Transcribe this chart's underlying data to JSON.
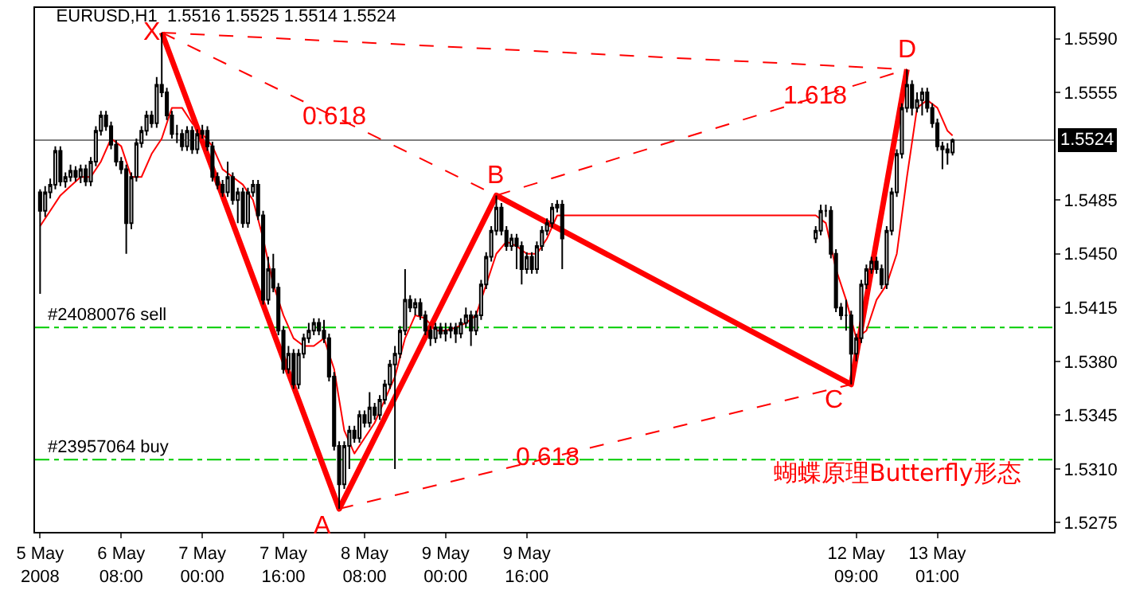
{
  "chart_data": {
    "type": "candlestick",
    "title": "EURUSD,H1  1.5516 1.5525 1.5514 1.5524",
    "color": "#000000",
    "xlim": [
      "2008-05-05T15:00",
      "2008-05-14T00:00"
    ],
    "ylim": [
      1.5269,
      1.561
    ],
    "xticks": [
      {
        "value": "2008-05-05T16:00",
        "label": "5 May 2008"
      },
      {
        "value": "2008-05-06T08:00",
        "label": "6 May 08:00"
      },
      {
        "value": "2008-05-07T00:00",
        "label": "7 May 00:00"
      },
      {
        "value": "2008-05-07T16:00",
        "label": "7 May 16:00"
      },
      {
        "value": "2008-05-08T08:00",
        "label": "8 May 08:00"
      },
      {
        "value": "2008-05-09T00:00",
        "label": "9 May 00:00"
      },
      {
        "value": "2008-05-09T16:00",
        "label": "9 May 16:00"
      },
      {
        "value": "2008-05-12T09:00",
        "label": "12 May 09:00"
      },
      {
        "value": "2008-05-13T01:00",
        "label": "13 May 01:00"
      }
    ],
    "yticks": [
      {
        "value": 1.559,
        "label": "1.5590"
      },
      1.5555,
      1.5485,
      {
        "value": 1.545,
        "label": "1.5450"
      },
      1.5415,
      {
        "value": 1.538,
        "label": "1.5380"
      },
      1.5345,
      {
        "value": 1.531,
        "label": "1.5310"
      },
      1.5275
    ],
    "x": [
      "2008-05-05T16:00",
      "2008-05-05T17:00",
      "2008-05-05T18:00",
      "2008-05-05T19:00",
      "2008-05-05T20:00",
      "2008-05-05T21:00",
      "2008-05-05T22:00",
      "2008-05-05T23:00",
      "2008-05-06T00:00",
      "2008-05-06T01:00",
      "2008-05-06T02:00",
      "2008-05-06T03:00",
      "2008-05-06T04:00",
      "2008-05-06T05:00",
      "2008-05-06T06:00",
      "2008-05-06T07:00",
      "2008-05-06T08:00",
      "2008-05-06T09:00",
      "2008-05-06T10:00",
      "2008-05-06T11:00",
      "2008-05-06T12:00",
      "2008-05-06T13:00",
      "2008-05-06T14:00",
      "2008-05-06T15:00",
      "2008-05-06T16:00",
      "2008-05-06T17:00",
      "2008-05-06T18:00",
      "2008-05-06T19:00",
      "2008-05-06T20:00",
      "2008-05-06T21:00",
      "2008-05-06T22:00",
      "2008-05-06T23:00",
      "2008-05-07T00:00",
      "2008-05-07T01:00",
      "2008-05-07T02:00",
      "2008-05-07T03:00",
      "2008-05-07T04:00",
      "2008-05-07T05:00",
      "2008-05-07T06:00",
      "2008-05-07T07:00",
      "2008-05-07T08:00",
      "2008-05-07T09:00",
      "2008-05-07T10:00",
      "2008-05-07T11:00",
      "2008-05-07T12:00",
      "2008-05-07T13:00",
      "2008-05-07T14:00",
      "2008-05-07T15:00",
      "2008-05-07T16:00",
      "2008-05-07T17:00",
      "2008-05-07T18:00",
      "2008-05-07T19:00",
      "2008-05-07T20:00",
      "2008-05-07T21:00",
      "2008-05-07T22:00",
      "2008-05-07T23:00",
      "2008-05-08T00:00",
      "2008-05-08T01:00",
      "2008-05-08T02:00",
      "2008-05-08T03:00",
      "2008-05-08T04:00",
      "2008-05-08T05:00",
      "2008-05-08T06:00",
      "2008-05-08T07:00",
      "2008-05-08T08:00",
      "2008-05-08T09:00",
      "2008-05-08T10:00",
      "2008-05-08T11:00",
      "2008-05-08T12:00",
      "2008-05-08T13:00",
      "2008-05-08T14:00",
      "2008-05-08T15:00",
      "2008-05-08T16:00",
      "2008-05-08T17:00",
      "2008-05-08T18:00",
      "2008-05-08T19:00",
      "2008-05-08T20:00",
      "2008-05-08T21:00",
      "2008-05-08T22:00",
      "2008-05-08T23:00",
      "2008-05-09T00:00",
      "2008-05-09T01:00",
      "2008-05-09T02:00",
      "2008-05-09T03:00",
      "2008-05-09T04:00",
      "2008-05-09T05:00",
      "2008-05-09T06:00",
      "2008-05-09T07:00",
      "2008-05-09T08:00",
      "2008-05-09T09:00",
      "2008-05-09T10:00",
      "2008-05-09T11:00",
      "2008-05-09T12:00",
      "2008-05-09T13:00",
      "2008-05-09T14:00",
      "2008-05-09T15:00",
      "2008-05-09T16:00",
      "2008-05-09T17:00",
      "2008-05-09T18:00",
      "2008-05-09T19:00",
      "2008-05-09T20:00",
      "2008-05-09T21:00",
      "2008-05-09T22:00",
      "2008-05-09T23:00",
      "2008-05-12T01:00",
      "2008-05-12T02:00",
      "2008-05-12T03:00",
      "2008-05-12T04:00",
      "2008-05-12T05:00",
      "2008-05-12T06:00",
      "2008-05-12T07:00",
      "2008-05-12T08:00",
      "2008-05-12T09:00",
      "2008-05-12T10:00",
      "2008-05-12T11:00",
      "2008-05-12T12:00",
      "2008-05-12T13:00",
      "2008-05-12T14:00",
      "2008-05-12T15:00",
      "2008-05-12T16:00",
      "2008-05-12T17:00",
      "2008-05-12T18:00",
      "2008-05-12T19:00",
      "2008-05-12T20:00",
      "2008-05-12T21:00",
      "2008-05-12T22:00",
      "2008-05-12T23:00",
      "2008-05-13T00:00",
      "2008-05-13T01:00",
      "2008-05-13T02:00",
      "2008-05-13T03:00",
      "2008-05-13T04:00"
    ],
    "ohlc": [
      [
        1.549,
        1.5492,
        1.5424,
        1.5478
      ],
      [
        1.5478,
        1.5494,
        1.5474,
        1.549
      ],
      [
        1.549,
        1.5499,
        1.5486,
        1.5495
      ],
      [
        1.5495,
        1.552,
        1.5492,
        1.5517
      ],
      [
        1.5517,
        1.552,
        1.5494,
        1.5497
      ],
      [
        1.5497,
        1.5503,
        1.5493,
        1.55
      ],
      [
        1.55,
        1.5508,
        1.5497,
        1.5504
      ],
      [
        1.5504,
        1.5507,
        1.5497,
        1.55
      ],
      [
        1.55,
        1.5508,
        1.5496,
        1.5505
      ],
      [
        1.5505,
        1.5508,
        1.5494,
        1.5497
      ],
      [
        1.5497,
        1.5513,
        1.5494,
        1.551
      ],
      [
        1.551,
        1.5533,
        1.5507,
        1.553
      ],
      [
        1.553,
        1.5543,
        1.5527,
        1.554
      ],
      [
        1.554,
        1.5543,
        1.553,
        1.5533
      ],
      [
        1.5533,
        1.5536,
        1.5518,
        1.5521
      ],
      [
        1.5521,
        1.5524,
        1.5507,
        1.551
      ],
      [
        1.551,
        1.5513,
        1.5502,
        1.5505
      ],
      [
        1.5505,
        1.5508,
        1.545,
        1.547
      ],
      [
        1.547,
        1.5503,
        1.5466,
        1.55
      ],
      [
        1.55,
        1.5525,
        1.5497,
        1.5522
      ],
      [
        1.5522,
        1.5533,
        1.5519,
        1.553
      ],
      [
        1.553,
        1.5543,
        1.5527,
        1.554
      ],
      [
        1.554,
        1.5543,
        1.5532,
        1.5535
      ],
      [
        1.5535,
        1.5565,
        1.5532,
        1.556
      ],
      [
        1.556,
        1.5594,
        1.5552,
        1.5555
      ],
      [
        1.5555,
        1.5558,
        1.5537,
        1.554
      ],
      [
        1.554,
        1.5543,
        1.5525,
        1.5528
      ],
      [
        1.5528,
        1.5534,
        1.5522,
        1.5528
      ],
      [
        1.5528,
        1.5531,
        1.5517,
        1.552
      ],
      [
        1.552,
        1.5533,
        1.5517,
        1.553
      ],
      [
        1.553,
        1.5533,
        1.5515,
        1.5518
      ],
      [
        1.5518,
        1.5531,
        1.5515,
        1.5528
      ],
      [
        1.5528,
        1.5534,
        1.5525,
        1.553
      ],
      [
        1.553,
        1.5533,
        1.5517,
        1.552
      ],
      [
        1.552,
        1.5523,
        1.5497,
        1.55
      ],
      [
        1.55,
        1.5503,
        1.5492,
        1.5495
      ],
      [
        1.5495,
        1.5498,
        1.5487,
        1.549
      ],
      [
        1.549,
        1.551,
        1.5487,
        1.55
      ],
      [
        1.55,
        1.5503,
        1.5482,
        1.5485
      ],
      [
        1.5485,
        1.5493,
        1.547,
        1.549
      ],
      [
        1.549,
        1.5493,
        1.5467,
        1.547
      ],
      [
        1.547,
        1.5493,
        1.5467,
        1.549
      ],
      [
        1.549,
        1.5498,
        1.5487,
        1.5495
      ],
      [
        1.5495,
        1.5498,
        1.5472,
        1.5475
      ],
      [
        1.5475,
        1.5478,
        1.5417,
        1.542
      ],
      [
        1.542,
        1.5448,
        1.5417,
        1.544
      ],
      [
        1.544,
        1.545,
        1.5425,
        1.5428
      ],
      [
        1.5428,
        1.5431,
        1.5397,
        1.54
      ],
      [
        1.54,
        1.5403,
        1.5372,
        1.5375
      ],
      [
        1.5375,
        1.539,
        1.5372,
        1.5385
      ],
      [
        1.5385,
        1.5388,
        1.5362,
        1.5365
      ],
      [
        1.5365,
        1.5388,
        1.5362,
        1.5385
      ],
      [
        1.5385,
        1.5398,
        1.5382,
        1.5395
      ],
      [
        1.5395,
        1.5405,
        1.5392,
        1.54
      ],
      [
        1.54,
        1.5408,
        1.5397,
        1.5405
      ],
      [
        1.5405,
        1.5408,
        1.5397,
        1.54
      ],
      [
        1.54,
        1.5407,
        1.5392,
        1.5395
      ],
      [
        1.5395,
        1.5398,
        1.5367,
        1.537
      ],
      [
        1.537,
        1.5373,
        1.5322,
        1.5325
      ],
      [
        1.5325,
        1.5328,
        1.5284,
        1.53
      ],
      [
        1.53,
        1.5328,
        1.5297,
        1.5325
      ],
      [
        1.5325,
        1.5338,
        1.531,
        1.5335
      ],
      [
        1.5335,
        1.5338,
        1.5327,
        1.533
      ],
      [
        1.533,
        1.5348,
        1.5327,
        1.5345
      ],
      [
        1.5345,
        1.5348,
        1.5337,
        1.534
      ],
      [
        1.534,
        1.536,
        1.5337,
        1.535
      ],
      [
        1.535,
        1.5353,
        1.5342,
        1.5345
      ],
      [
        1.5345,
        1.5358,
        1.5342,
        1.5355
      ],
      [
        1.5355,
        1.5368,
        1.5352,
        1.5365
      ],
      [
        1.5365,
        1.5381,
        1.5362,
        1.5378
      ],
      [
        1.5378,
        1.539,
        1.531,
        1.5385
      ],
      [
        1.5385,
        1.5403,
        1.5382,
        1.54
      ],
      [
        1.54,
        1.544,
        1.5397,
        1.542
      ],
      [
        1.542,
        1.5423,
        1.5412,
        1.5415
      ],
      [
        1.5415,
        1.5421,
        1.541,
        1.5418
      ],
      [
        1.5418,
        1.5421,
        1.5407,
        1.541
      ],
      [
        1.541,
        1.5413,
        1.5397,
        1.54
      ],
      [
        1.54,
        1.5403,
        1.539,
        1.5395
      ],
      [
        1.5395,
        1.5405,
        1.5392,
        1.5402
      ],
      [
        1.5402,
        1.5405,
        1.5395,
        1.5398
      ],
      [
        1.5398,
        1.5405,
        1.5393,
        1.54
      ],
      [
        1.54,
        1.5405,
        1.5395,
        1.5402
      ],
      [
        1.5402,
        1.5405,
        1.5392,
        1.5398
      ],
      [
        1.5398,
        1.5408,
        1.5395,
        1.5405
      ],
      [
        1.5405,
        1.5415,
        1.5402,
        1.541
      ],
      [
        1.541,
        1.5413,
        1.539,
        1.54
      ],
      [
        1.54,
        1.5413,
        1.5397,
        1.541
      ],
      [
        1.541,
        1.5433,
        1.5407,
        1.543
      ],
      [
        1.543,
        1.5451,
        1.5427,
        1.5448
      ],
      [
        1.5448,
        1.5468,
        1.5445,
        1.5465
      ],
      [
        1.5465,
        1.5488,
        1.5462,
        1.548
      ],
      [
        1.548,
        1.5483,
        1.5462,
        1.5465
      ],
      [
        1.5465,
        1.5468,
        1.5452,
        1.5455
      ],
      [
        1.5455,
        1.5463,
        1.5452,
        1.546
      ],
      [
        1.546,
        1.5463,
        1.544,
        1.5455
      ],
      [
        1.5455,
        1.5458,
        1.543,
        1.544
      ],
      [
        1.544,
        1.5451,
        1.5437,
        1.5448
      ],
      [
        1.5448,
        1.5451,
        1.5437,
        1.544
      ],
      [
        1.544,
        1.5458,
        1.5437,
        1.5455
      ],
      [
        1.5455,
        1.5468,
        1.5452,
        1.5465
      ],
      [
        1.5465,
        1.5473,
        1.5462,
        1.547
      ],
      [
        1.547,
        1.5483,
        1.5467,
        1.548
      ],
      [
        1.548,
        1.5485,
        1.5477,
        1.5482
      ],
      [
        1.5482,
        1.5485,
        1.544,
        1.546
      ],
      [
        1.546,
        1.5468,
        1.5457,
        1.5465
      ],
      [
        1.5465,
        1.5482,
        1.5462,
        1.5478
      ],
      [
        1.5478,
        1.5482,
        1.5474,
        1.5478
      ],
      [
        1.5478,
        1.5481,
        1.5447,
        1.545
      ],
      [
        1.545,
        1.5453,
        1.5412,
        1.5415
      ],
      [
        1.5415,
        1.5418,
        1.5407,
        1.541
      ],
      [
        1.541,
        1.542,
        1.54,
        1.541
      ],
      [
        1.541,
        1.5413,
        1.5365,
        1.5385
      ],
      [
        1.5385,
        1.5398,
        1.538,
        1.5395
      ],
      [
        1.5395,
        1.5433,
        1.5392,
        1.543
      ],
      [
        1.543,
        1.5443,
        1.5427,
        1.544
      ],
      [
        1.544,
        1.5448,
        1.5437,
        1.5445
      ],
      [
        1.5445,
        1.5448,
        1.5437,
        1.544
      ],
      [
        1.544,
        1.5443,
        1.5427,
        1.543
      ],
      [
        1.543,
        1.5468,
        1.5427,
        1.5465
      ],
      [
        1.5465,
        1.5493,
        1.5462,
        1.549
      ],
      [
        1.549,
        1.5518,
        1.5487,
        1.5515
      ],
      [
        1.5515,
        1.5548,
        1.5512,
        1.5545
      ],
      [
        1.5545,
        1.557,
        1.5542,
        1.556
      ],
      [
        1.556,
        1.5563,
        1.554,
        1.5545
      ],
      [
        1.5545,
        1.5555,
        1.5542,
        1.555
      ],
      [
        1.555,
        1.5558,
        1.554,
        1.5555
      ],
      [
        1.5555,
        1.5558,
        1.5542,
        1.5545
      ],
      [
        1.5545,
        1.5548,
        1.5532,
        1.5535
      ],
      [
        1.5535,
        1.5538,
        1.5517,
        1.552
      ],
      [
        1.552,
        1.5523,
        1.5505,
        1.5518
      ],
      [
        1.5518,
        1.5522,
        1.5508,
        1.5516
      ],
      [
        1.5516,
        1.5525,
        1.5514,
        1.5524
      ]
    ],
    "series": [
      {
        "type": "line",
        "color": "#ff0000",
        "x": [
          "2008-05-05T16:00",
          "2008-05-05T18:00",
          "2008-05-05T20:00",
          "2008-05-05T22:00",
          "2008-05-06T00:00",
          "2008-05-06T02:00",
          "2008-05-06T04:00",
          "2008-05-06T06:00",
          "2008-05-06T08:00",
          "2008-05-06T10:00",
          "2008-05-06T12:00",
          "2008-05-06T14:00",
          "2008-05-06T16:00",
          "2008-05-06T18:00",
          "2008-05-06T20:00",
          "2008-05-06T22:00",
          "2008-05-07T00:00",
          "2008-05-07T02:00",
          "2008-05-07T04:00",
          "2008-05-07T06:00",
          "2008-05-07T08:00",
          "2008-05-07T10:00",
          "2008-05-07T12:00",
          "2008-05-07T14:00",
          "2008-05-07T16:00",
          "2008-05-07T18:00",
          "2008-05-07T20:00",
          "2008-05-07T22:00",
          "2008-05-08T00:00",
          "2008-05-08T02:00",
          "2008-05-08T04:00",
          "2008-05-08T06:00",
          "2008-05-08T08:00",
          "2008-05-08T10:00",
          "2008-05-08T12:00",
          "2008-05-08T14:00",
          "2008-05-08T16:00",
          "2008-05-08T18:00",
          "2008-05-08T20:00",
          "2008-05-08T22:00",
          "2008-05-09T00:00",
          "2008-05-09T02:00",
          "2008-05-09T04:00",
          "2008-05-09T06:00",
          "2008-05-09T08:00",
          "2008-05-09T10:00",
          "2008-05-09T12:00",
          "2008-05-09T14:00",
          "2008-05-09T16:00",
          "2008-05-09T18:00",
          "2008-05-09T20:00",
          "2008-05-09T22:00",
          "2008-05-12T01:00",
          "2008-05-12T03:00",
          "2008-05-12T05:00",
          "2008-05-12T07:00",
          "2008-05-12T09:00",
          "2008-05-12T11:00",
          "2008-05-12T13:00",
          "2008-05-12T15:00",
          "2008-05-12T17:00",
          "2008-05-12T19:00",
          "2008-05-12T21:00",
          "2008-05-12T23:00",
          "2008-05-13T01:00",
          "2008-05-13T03:00",
          "2008-05-13T04:00"
        ],
        "values": [
          1.5468,
          1.5478,
          1.5488,
          1.5494,
          1.55,
          1.55,
          1.551,
          1.5525,
          1.552,
          1.55,
          1.55,
          1.5515,
          1.5525,
          1.5545,
          1.5545,
          1.5535,
          1.5528,
          1.552,
          1.5505,
          1.55,
          1.5495,
          1.5485,
          1.546,
          1.543,
          1.541,
          1.5395,
          1.539,
          1.539,
          1.5395,
          1.5375,
          1.5335,
          1.532,
          1.533,
          1.534,
          1.5355,
          1.537,
          1.5395,
          1.541,
          1.5408,
          1.54,
          1.54,
          1.5402,
          1.5405,
          1.541,
          1.543,
          1.545,
          1.5458,
          1.5455,
          1.545,
          1.545,
          1.546,
          1.5475,
          1.5475,
          1.547,
          1.544,
          1.542,
          1.5395,
          1.54,
          1.542,
          1.543,
          1.545,
          1.55,
          1.5545,
          1.555,
          1.5545,
          1.553,
          1.5527
        ]
      },
      {
        "type": "line",
        "color": "#ff0000",
        "x": [
          "2008-05-06T16:00",
          "2008-05-08T03:00",
          "2008-05-09T10:00",
          "2008-05-12T08:00",
          "2008-05-12T19:00"
        ],
        "values": [
          1.5594,
          1.5284,
          1.5488,
          1.5365,
          1.557
        ]
      },
      {
        "type": "line",
        "color": "#ff0000",
        "line_style": "dashed",
        "x": [
          "2008-05-06T16:00",
          "2008-05-09T10:00"
        ],
        "values": [
          1.5594,
          1.5488
        ]
      },
      {
        "type": "line",
        "color": "#ff0000",
        "line_style": "dashed",
        "x": [
          "2008-05-06T16:00",
          "2008-05-12T19:00"
        ],
        "values": [
          1.5594,
          1.557
        ]
      },
      {
        "type": "line",
        "color": "#ff0000",
        "line_style": "dashed",
        "x": [
          "2008-05-08T03:00",
          "2008-05-12T08:00"
        ],
        "values": [
          1.5284,
          1.5365
        ]
      },
      {
        "type": "line",
        "color": "#ff0000",
        "line_style": "dashed",
        "x": [
          "2008-05-09T10:00",
          "2008-05-12T19:00"
        ],
        "values": [
          1.5488,
          1.557
        ]
      }
    ],
    "ref_lines": [
      {
        "axis": "y",
        "value": 1.5402,
        "label": "#24080076 sell",
        "color": "#00cc00",
        "line_style": "dashed"
      },
      {
        "axis": "y",
        "value": 1.5316,
        "label": "#23957064 buy",
        "color": "#00cc00",
        "line_style": "dashed"
      },
      {
        "axis": "y",
        "value": 1.5524,
        "label": "1.5524",
        "color": "#808080"
      }
    ],
    "annotations": [
      {
        "text": "X",
        "x": "2008-05-06T16:00",
        "y": 1.5594
      },
      {
        "text": "A",
        "x": "2008-05-08T03:00",
        "y": 1.5284
      },
      {
        "text": "B",
        "x": "2008-05-09T10:00",
        "y": 1.5488
      },
      {
        "text": "C",
        "x": "2008-05-12T08:00",
        "y": 1.5365
      },
      {
        "text": "D",
        "x": "2008-05-12T19:00",
        "y": 1.557
      },
      {
        "text": "0.618",
        "x": "2008-05-08T02:00",
        "y": 1.5539
      },
      {
        "text": "1.618",
        "x": "2008-05-12T01:00",
        "y": 1.5552
      },
      {
        "text": "0.618",
        "x": "2008-05-09T20:00",
        "y": 1.5317
      },
      "蝴蝶原理Butterfly形态"
    ]
  }
}
